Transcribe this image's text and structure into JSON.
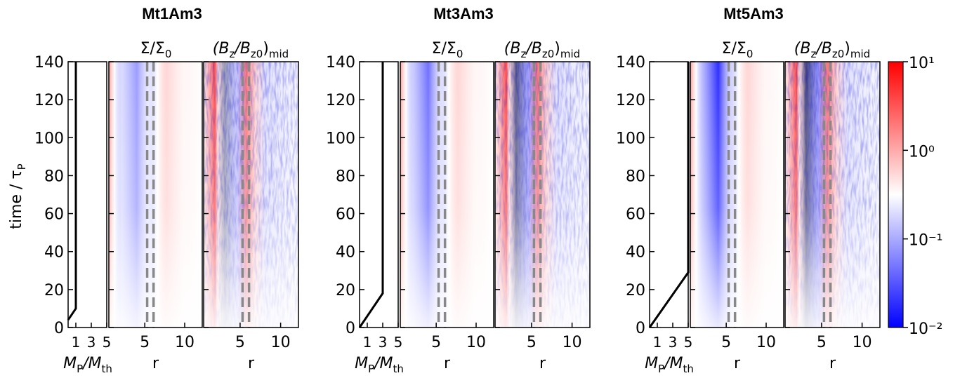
{
  "chart_data": {
    "type": "heatmap",
    "panels": [
      {
        "title": "Mt1Am3",
        "mass_x": [
          0,
          1,
          1
        ],
        "mass_y": [
          4,
          10,
          140
        ]
      },
      {
        "title": "Mt3Am3",
        "mass_x": [
          0,
          3,
          3
        ],
        "mass_y": [
          0,
          18,
          140
        ]
      },
      {
        "title": "Mt5Am3",
        "mass_x": [
          0,
          5,
          5
        ],
        "mass_y": [
          0,
          29,
          140
        ]
      }
    ],
    "sigma_header": [
      "Σ/Σ",
      "0"
    ],
    "bz_header": [
      "(B",
      "z",
      "/B",
      "z0",
      ")",
      "mid"
    ],
    "ylabel": [
      "time / τ",
      "P"
    ],
    "mass_xlabel": [
      "M",
      "P",
      "/M",
      "th"
    ],
    "r_xlabel": "r",
    "ylim": [
      0,
      140
    ],
    "yticks": [
      0,
      20,
      40,
      60,
      80,
      100,
      120,
      140
    ],
    "mass_xlim": [
      0,
      5
    ],
    "mass_xticks": [
      1,
      3,
      5
    ],
    "r_xlim": [
      0.5,
      12.2
    ],
    "r_xticks": [
      5,
      10
    ],
    "guide_r": [
      5.3,
      6.1
    ],
    "colorbar": {
      "scale": "log",
      "lim": [
        0.01,
        10
      ],
      "ticks": [
        {
          "value": 0.01,
          "label": "10⁻²"
        },
        {
          "value": 0.1,
          "label": "10⁻¹"
        },
        {
          "value": 1,
          "label": "10⁰"
        },
        {
          "value": 10,
          "label": "10¹"
        }
      ]
    }
  }
}
